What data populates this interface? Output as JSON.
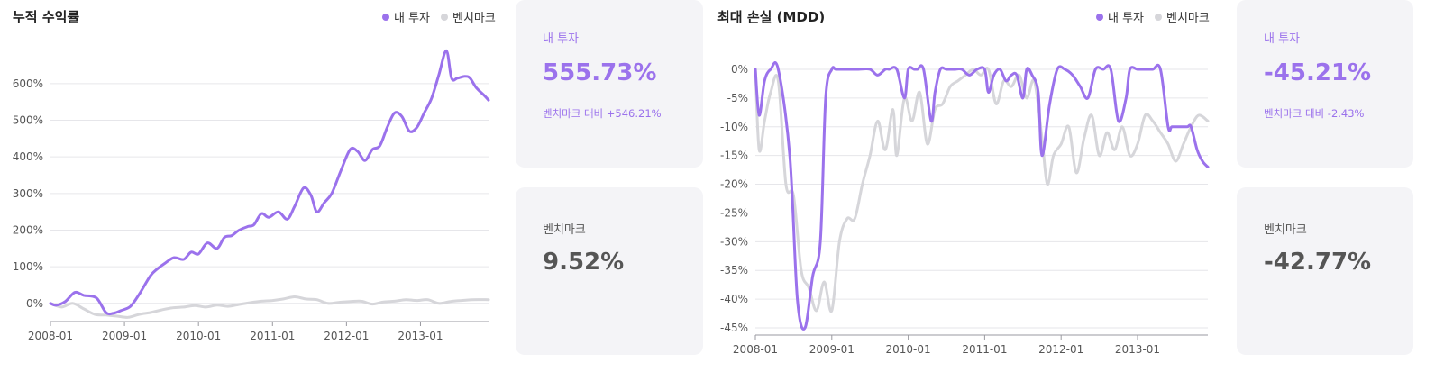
{
  "colors": {
    "mine": "#9b72ec",
    "bench": "#d6d6da",
    "grid": "#e6e6ea",
    "card_bg": "#f4f4f7",
    "accent_text": "#9b72ec",
    "dark_text": "#555555"
  },
  "returns_panel": {
    "title": "누적 수익률",
    "legend": [
      {
        "label": "내 투자",
        "color": "#9b72ec"
      },
      {
        "label": "벤치마크",
        "color": "#d6d6da"
      }
    ],
    "mine_card": {
      "label": "내 투자",
      "value": "555.73%",
      "sub": "벤치마크 대비 +546.21%"
    },
    "bench_card": {
      "label": "벤치마크",
      "value": "9.52%"
    }
  },
  "mdd_panel": {
    "title": "최대 손실 (MDD)",
    "legend": [
      {
        "label": "내 투자",
        "color": "#9b72ec"
      },
      {
        "label": "벤치마크",
        "color": "#d6d6da"
      }
    ],
    "mine_card": {
      "label": "내 투자",
      "value": "-45.21%",
      "sub": "벤치마크 대비 -2.43%"
    },
    "bench_card": {
      "label": "벤치마크",
      "value": "-42.77%"
    }
  },
  "chart_data": [
    {
      "type": "line",
      "title": "누적 수익률",
      "x_ticks": [
        "2008-01",
        "2009-01",
        "2010-01",
        "2011-01",
        "2012-01",
        "2013-01"
      ],
      "y_ticks": [
        "0%",
        "100%",
        "200%",
        "300%",
        "400%",
        "500%",
        "600%"
      ],
      "ylim": [
        -30,
        730
      ],
      "xlim": [
        2008.0,
        2013.92
      ],
      "grid": true,
      "legend_position": "top-right",
      "series": [
        {
          "name": "내 투자",
          "color": "#9b72ec",
          "x": [
            2008.0,
            2008.08,
            2008.2,
            2008.33,
            2008.45,
            2008.62,
            2008.75,
            2008.85,
            2008.95,
            2009.08,
            2009.2,
            2009.35,
            2009.45,
            2009.55,
            2009.67,
            2009.8,
            2009.9,
            2010.0,
            2010.12,
            2010.25,
            2010.35,
            2010.45,
            2010.55,
            2010.67,
            2010.75,
            2010.85,
            2010.95,
            2011.08,
            2011.2,
            2011.3,
            2011.42,
            2011.52,
            2011.6,
            2011.7,
            2011.8,
            2011.92,
            2012.05,
            2012.15,
            2012.25,
            2012.35,
            2012.45,
            2012.55,
            2012.65,
            2012.75,
            2012.85,
            2012.95,
            2013.05,
            2013.15,
            2013.25,
            2013.35,
            2013.42,
            2013.5,
            2013.6,
            2013.67,
            2013.75,
            2013.85,
            2013.92
          ],
          "y": [
            0,
            -5,
            5,
            30,
            22,
            15,
            -25,
            -27,
            -20,
            -8,
            25,
            75,
            95,
            110,
            125,
            120,
            140,
            135,
            165,
            150,
            180,
            185,
            200,
            210,
            215,
            245,
            235,
            250,
            230,
            265,
            315,
            295,
            250,
            275,
            300,
            360,
            420,
            415,
            390,
            420,
            430,
            480,
            520,
            510,
            470,
            480,
            520,
            560,
            625,
            690,
            615,
            615,
            620,
            615,
            590,
            570,
            555
          ]
        },
        {
          "name": "벤치마크",
          "color": "#d6d6da",
          "x": [
            2008.0,
            2008.15,
            2008.3,
            2008.45,
            2008.6,
            2008.75,
            2008.9,
            2009.05,
            2009.2,
            2009.35,
            2009.5,
            2009.65,
            2009.8,
            2009.95,
            2010.1,
            2010.25,
            2010.4,
            2010.55,
            2010.7,
            2010.85,
            2011.0,
            2011.15,
            2011.3,
            2011.45,
            2011.6,
            2011.75,
            2011.9,
            2012.05,
            2012.2,
            2012.35,
            2012.5,
            2012.65,
            2012.8,
            2012.95,
            2013.1,
            2013.25,
            2013.4,
            2013.55,
            2013.7,
            2013.92
          ],
          "y": [
            0,
            -10,
            0,
            -15,
            -30,
            -32,
            -35,
            -38,
            -30,
            -25,
            -18,
            -12,
            -10,
            -6,
            -10,
            -5,
            -8,
            -3,
            2,
            6,
            8,
            12,
            18,
            12,
            10,
            0,
            3,
            5,
            6,
            -2,
            4,
            6,
            10,
            8,
            10,
            0,
            5,
            8,
            10,
            10
          ]
        }
      ]
    },
    {
      "type": "line",
      "title": "최대 손실 (MDD)",
      "x_ticks": [
        "2008-01",
        "2009-01",
        "2010-01",
        "2011-01",
        "2012-01",
        "2013-01"
      ],
      "y_ticks": [
        "0%",
        "-5%",
        "-10%",
        "-15%",
        "-20%",
        "-25%",
        "-30%",
        "-35%",
        "-40%",
        "-45%"
      ],
      "ylim": [
        -45,
        0
      ],
      "xlim": [
        2008.0,
        2013.92
      ],
      "grid": true,
      "legend_position": "top-right",
      "series": [
        {
          "name": "내 투자",
          "color": "#9b72ec",
          "x": [
            2008.0,
            2008.05,
            2008.12,
            2008.2,
            2008.3,
            2008.45,
            2008.55,
            2008.65,
            2008.75,
            2008.85,
            2008.92,
            2009.0,
            2009.05,
            2009.1,
            2009.18,
            2009.25,
            2009.35,
            2009.5,
            2009.6,
            2009.7,
            2009.75,
            2009.85,
            2009.95,
            2010.0,
            2010.08,
            2010.12,
            2010.2,
            2010.3,
            2010.35,
            2010.42,
            2010.5,
            2010.6,
            2010.7,
            2010.8,
            2010.9,
            2011.0,
            2011.05,
            2011.12,
            2011.2,
            2011.28,
            2011.35,
            2011.42,
            2011.5,
            2011.55,
            2011.62,
            2011.7,
            2011.75,
            2011.85,
            2011.95,
            2012.05,
            2012.15,
            2012.25,
            2012.35,
            2012.45,
            2012.55,
            2012.65,
            2012.75,
            2012.85,
            2012.9,
            2013.0,
            2013.1,
            2013.2,
            2013.3,
            2013.4,
            2013.45,
            2013.55,
            2013.65,
            2013.7,
            2013.78,
            2013.85,
            2013.92
          ],
          "y": [
            0,
            -8,
            -2,
            0,
            0,
            -15,
            -40,
            -45,
            -36,
            -30,
            -5,
            0,
            0,
            0,
            0,
            0,
            0,
            0,
            -1,
            0,
            0,
            0,
            -5,
            0,
            0,
            0,
            0,
            -9,
            -4,
            0,
            0,
            0,
            0,
            -1,
            0,
            0,
            -4,
            -1,
            0,
            -2,
            -1,
            -1,
            -5,
            0,
            -1,
            -4,
            -15,
            -6,
            0,
            0,
            -1,
            -3,
            -5,
            0,
            0,
            0,
            -9,
            -5,
            0,
            0,
            0,
            0,
            0,
            -10,
            -10,
            -10,
            -10,
            -10,
            -14,
            -16,
            -17
          ]
        },
        {
          "name": "벤치마크",
          "color": "#d6d6da",
          "x": [
            2008.0,
            2008.05,
            2008.12,
            2008.2,
            2008.3,
            2008.4,
            2008.5,
            2008.6,
            2008.7,
            2008.8,
            2008.9,
            2009.0,
            2009.1,
            2009.2,
            2009.3,
            2009.4,
            2009.5,
            2009.6,
            2009.7,
            2009.8,
            2009.85,
            2009.95,
            2010.05,
            2010.15,
            2010.25,
            2010.35,
            2010.45,
            2010.55,
            2010.65,
            2010.75,
            2010.85,
            2010.95,
            2011.05,
            2011.15,
            2011.25,
            2011.35,
            2011.45,
            2011.55,
            2011.65,
            2011.75,
            2011.82,
            2011.9,
            2012.0,
            2012.1,
            2012.2,
            2012.3,
            2012.4,
            2012.5,
            2012.6,
            2012.7,
            2012.8,
            2012.9,
            2013.0,
            2013.1,
            2013.2,
            2013.3,
            2013.4,
            2013.5,
            2013.6,
            2013.7,
            2013.8,
            2013.92
          ],
          "y": [
            0,
            -14,
            -9,
            -4,
            -2,
            -20,
            -22,
            -35,
            -38,
            -42,
            -37,
            -42,
            -30,
            -26,
            -26,
            -20,
            -15,
            -9,
            -14,
            -7,
            -15,
            -5,
            -9,
            -4,
            -13,
            -7,
            -6,
            -3,
            -2,
            -1,
            0,
            -1,
            0,
            -6,
            -2,
            -3,
            -1,
            -5,
            -2,
            -12,
            -20,
            -15,
            -13,
            -10,
            -18,
            -12,
            -8,
            -15,
            -11,
            -14,
            -10,
            -15,
            -13,
            -8,
            -9,
            -11,
            -13,
            -16,
            -13,
            -10,
            -8,
            -9
          ]
        }
      ]
    }
  ]
}
